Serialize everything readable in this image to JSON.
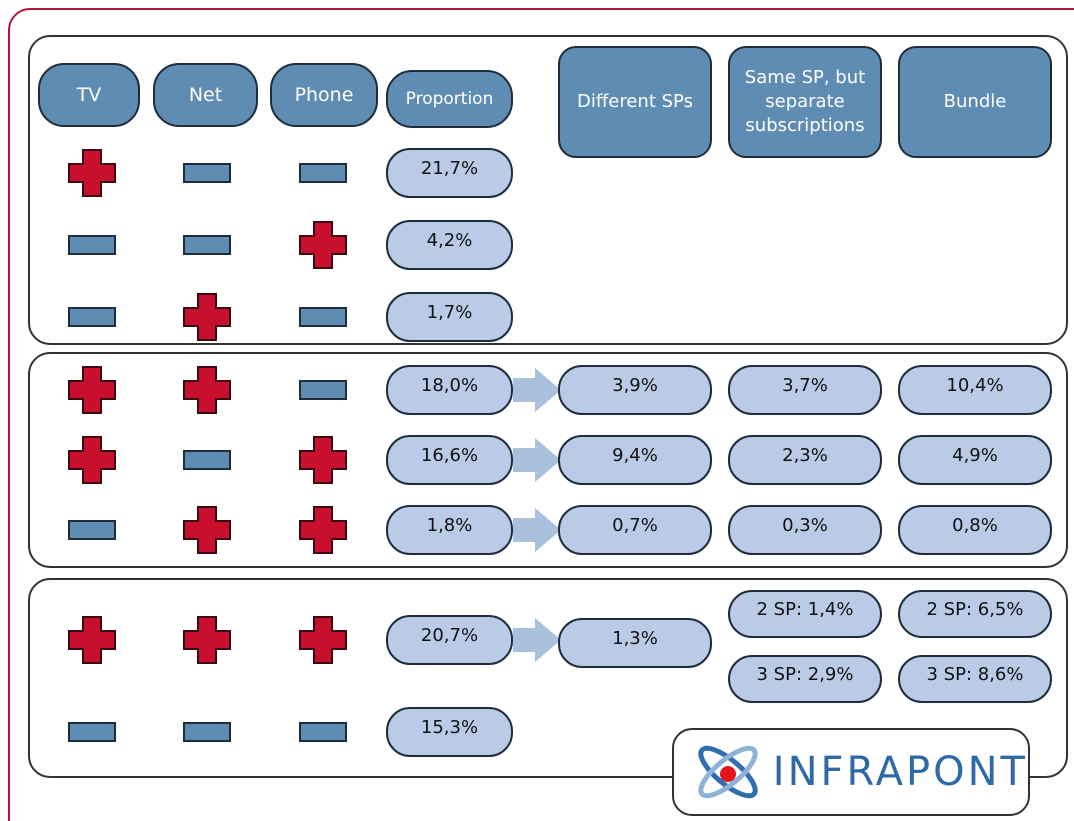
{
  "header": {
    "services": [
      "TV",
      "Net",
      "Phone"
    ],
    "proportion": "Proportion",
    "providers": [
      "Different SPs",
      "Same SP, but separate subscriptions",
      "Bundle"
    ]
  },
  "groups": [
    {
      "rows": [
        {
          "services": [
            true,
            false,
            false
          ],
          "proportion": "21,7%"
        },
        {
          "services": [
            false,
            false,
            true
          ],
          "proportion": "4,2%"
        },
        {
          "services": [
            false,
            true,
            false
          ],
          "proportion": "1,7%"
        }
      ]
    },
    {
      "rows": [
        {
          "services": [
            true,
            true,
            false
          ],
          "proportion": "18,0%",
          "split": [
            "3,9%",
            "3,7%",
            "10,4%"
          ]
        },
        {
          "services": [
            true,
            false,
            true
          ],
          "proportion": "16,6%",
          "split": [
            "9,4%",
            "2,3%",
            "4,9%"
          ]
        },
        {
          "services": [
            false,
            true,
            true
          ],
          "proportion": "1,8%",
          "split": [
            "0,7%",
            "0,3%",
            "0,8%"
          ]
        }
      ]
    },
    {
      "rows": [
        {
          "services": [
            true,
            true,
            true
          ],
          "proportion": "20,7%",
          "split": [
            "1,3%",
            [
              "2 SP: 1,4%",
              "3 SP: 2,9%"
            ],
            [
              "2 SP: 6,5%",
              "3 SP: 8,6%"
            ]
          ]
        },
        {
          "services": [
            false,
            false,
            false
          ],
          "proportion": "15,3%"
        }
      ]
    }
  ],
  "logo": "INFRAPONT"
}
